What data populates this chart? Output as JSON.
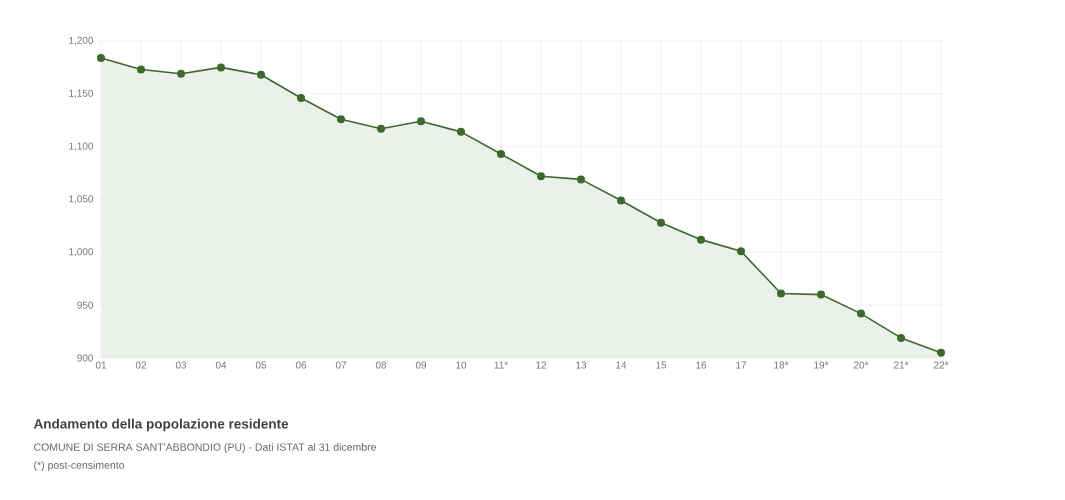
{
  "chart_data": {
    "type": "area",
    "title": "Andamento della popolazione residente",
    "annotations": [
      "COMUNE DI SERRA SANT'ABBONDIO (PU) - Dati ISTAT al 31 dicembre",
      "(*) post-censimento"
    ],
    "categories": [
      "01",
      "02",
      "03",
      "04",
      "05",
      "06",
      "07",
      "08",
      "09",
      "10",
      "11*",
      "12",
      "13",
      "14",
      "15",
      "16",
      "17",
      "18*",
      "19*",
      "20*",
      "21*",
      "22*"
    ],
    "values": [
      1184,
      1173,
      1169,
      1175,
      1168,
      1146,
      1126,
      1117,
      1124,
      1114,
      1093,
      1072,
      1069,
      1049,
      1028,
      1012,
      1001,
      961,
      960,
      942,
      919,
      905
    ],
    "color": "#3a6b2a",
    "ylim": [
      900,
      1200
    ],
    "yticks": [
      {
        "value": 900,
        "label": "900"
      },
      {
        "value": 950,
        "label": "950"
      },
      {
        "value": 1000,
        "label": "1,000"
      },
      {
        "value": 1050,
        "label": "1,050"
      },
      {
        "value": 1100,
        "label": "1,100"
      },
      {
        "value": 1150,
        "label": "1,150"
      },
      {
        "value": 1200,
        "label": "1,200"
      }
    ],
    "grid": true,
    "marker": "circle"
  }
}
